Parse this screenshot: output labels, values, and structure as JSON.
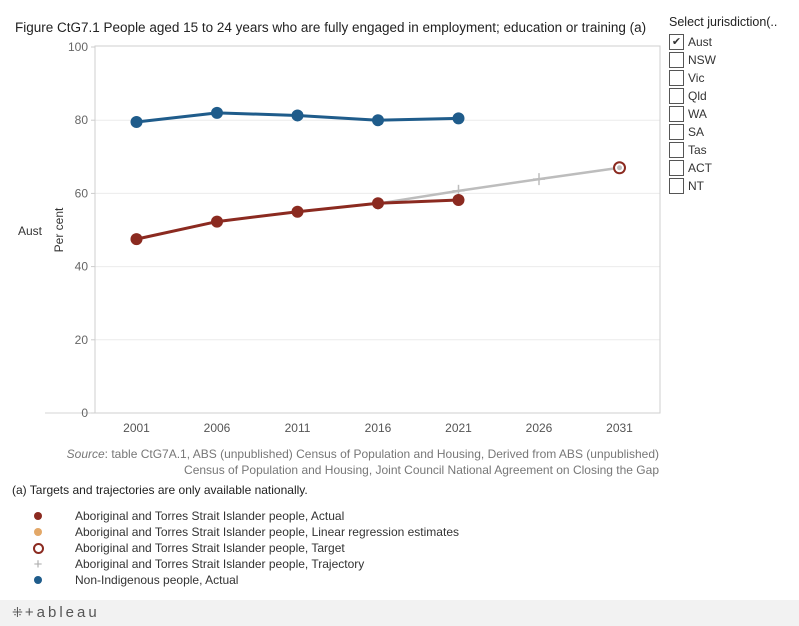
{
  "chart_data": {
    "type": "line",
    "title": "Figure CtG7.1 People aged 15 to 24 years who are fully engaged in employment; education or training (a)",
    "row_label": "Aust",
    "ylabel": "Per cent",
    "xlabel": "",
    "ylim": [
      0,
      100
    ],
    "y_ticks": [
      0,
      20,
      40,
      60,
      80,
      100
    ],
    "categories": [
      "2001",
      "2006",
      "2011",
      "2016",
      "2021",
      "2026",
      "2031"
    ],
    "series": [
      {
        "name": "Non-Indigenous people, Actual",
        "style": "line-dot",
        "color": "#1f5c8b",
        "x": [
          2001,
          2006,
          2011,
          2016,
          2021
        ],
        "values": [
          79.5,
          82.0,
          81.3,
          80.0,
          80.5
        ]
      },
      {
        "name": "Aboriginal and Torres Strait Islander people, Trajectory",
        "style": "line-plus",
        "color": "#bdbdbd",
        "x": [
          2016,
          2021,
          2026,
          2031
        ],
        "values": [
          57.2,
          60.7,
          63.9,
          67.0
        ]
      },
      {
        "name": "Aboriginal and Torres Strait Islander people, Actual",
        "style": "line-dot",
        "color": "#8b2a20",
        "x": [
          2001,
          2006,
          2011,
          2016,
          2021
        ],
        "values": [
          47.5,
          52.3,
          55.0,
          57.3,
          58.2
        ]
      },
      {
        "name": "Aboriginal and Torres Strait Islander people, Target",
        "style": "ring",
        "color": "#8b2a20",
        "x": [
          2031
        ],
        "values": [
          67.0
        ]
      }
    ]
  },
  "filter": {
    "title": "Select jurisdiction(..",
    "options": [
      {
        "label": "Aust",
        "checked": true
      },
      {
        "label": "NSW",
        "checked": false
      },
      {
        "label": "Vic",
        "checked": false
      },
      {
        "label": "Qld",
        "checked": false
      },
      {
        "label": "WA",
        "checked": false
      },
      {
        "label": "SA",
        "checked": false
      },
      {
        "label": "Tas",
        "checked": false
      },
      {
        "label": "ACT",
        "checked": false
      },
      {
        "label": "NT",
        "checked": false
      }
    ]
  },
  "source": {
    "label": "Source",
    "line1": ": table CtG7A.1, ABS (unpublished) Census of Population and Housing, Derived from ABS (unpublished)",
    "line2": "Census of Population and Housing, Joint Council National Agreement on Closing the Gap"
  },
  "footnote": "(a) Targets and trajectories are only available nationally.",
  "legend": [
    {
      "label": "Aboriginal and Torres Strait Islander people, Actual",
      "marker": "dot",
      "color": "#8b2a20"
    },
    {
      "label": "Aboriginal and Torres Strait Islander people, Linear regression estimates",
      "marker": "dot",
      "color": "#e3a868"
    },
    {
      "label": "Aboriginal and Torres Strait Islander people, Target",
      "marker": "ring",
      "color": "#8b2a20"
    },
    {
      "label": "Aboriginal and Torres Strait Islander people, Trajectory",
      "marker": "plus",
      "color": "#aaaaaa"
    },
    {
      "label": "Non-Indigenous people, Actual",
      "marker": "dot",
      "color": "#1f5c8b"
    }
  ],
  "footer": {
    "logo_text": "+ableau",
    "logo_mark": "⁜"
  }
}
